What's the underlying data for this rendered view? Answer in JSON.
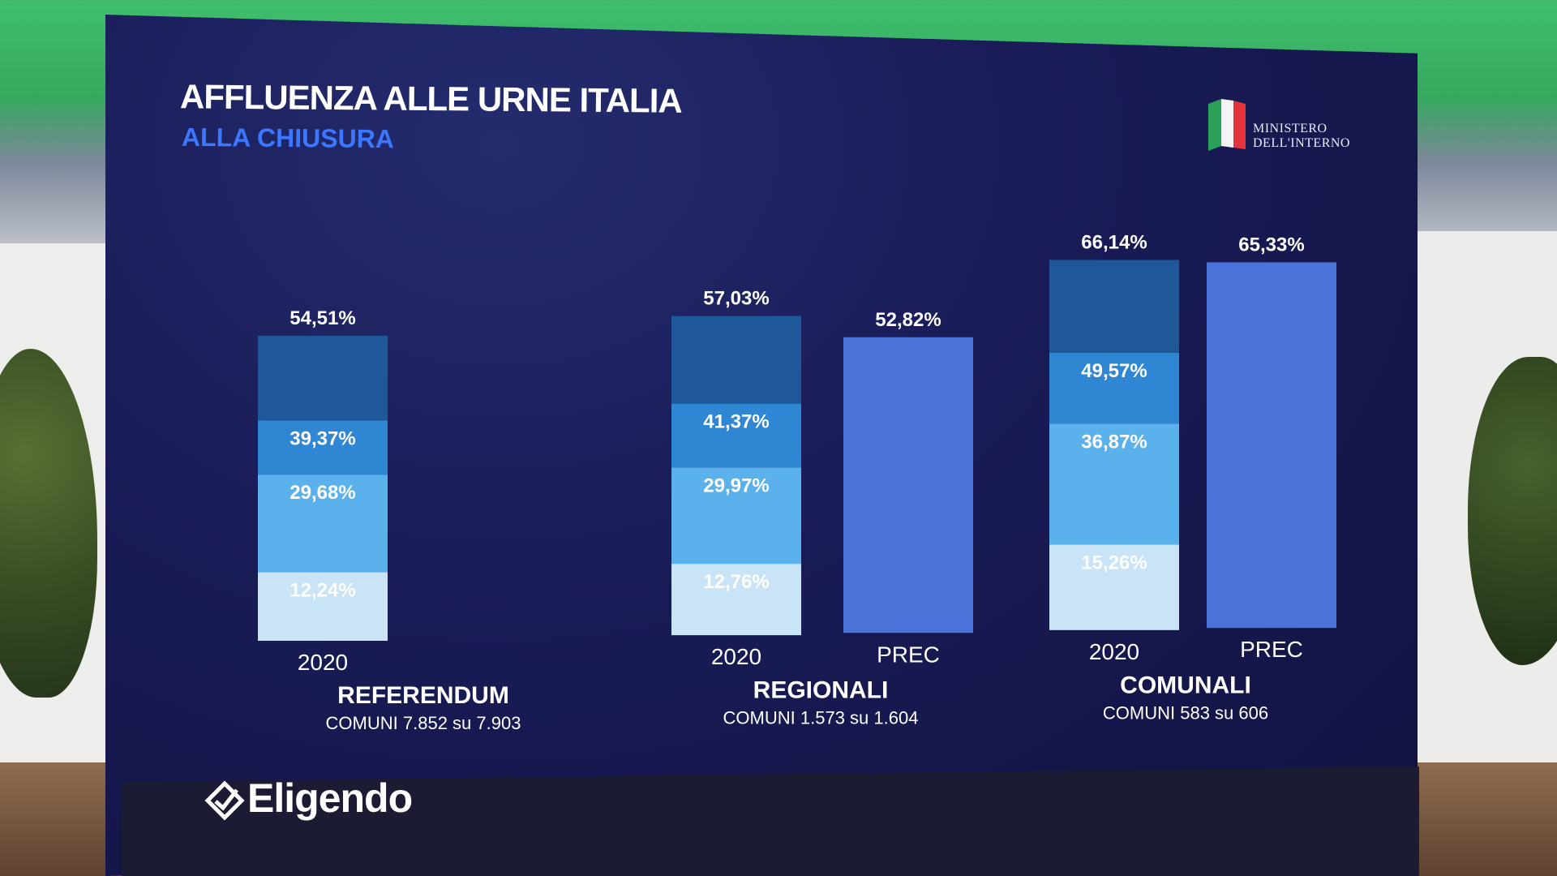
{
  "header": {
    "title": "AFFLUENZA ALLE URNE ITALIA",
    "subtitle": "ALLA CHIUSURA"
  },
  "ministry": {
    "line1": "MINISTERO",
    "line2": "DELL'INTERNO"
  },
  "brand": {
    "name": "Eligendo"
  },
  "colors": {
    "level_1": "#c9e4f6",
    "level_2": "#5bb1ec",
    "level_3": "#2f86d3",
    "level_4": "#1f5898",
    "prec": "#4a73d9",
    "text": "#ffffff"
  },
  "chart_data": {
    "type": "bar",
    "title": "AFFLUENZA ALLE URNE ITALIA",
    "subtitle": "ALLA CHIUSURA",
    "groups": [
      {
        "name": "REFERENDUM",
        "detail": "COMUNI 7.852 su 7.903",
        "bars": [
          {
            "label": "2020",
            "kind": "stacked",
            "levels": [
              12.24,
              29.68,
              39.37,
              54.51
            ],
            "level_labels": [
              "12,24%",
              "29,68%",
              "39,37%",
              "54,51%"
            ]
          }
        ]
      },
      {
        "name": "REGIONALI",
        "detail": "COMUNI 1.573 su 1.604",
        "bars": [
          {
            "label": "2020",
            "kind": "stacked",
            "levels": [
              12.76,
              29.97,
              41.37,
              57.03
            ],
            "level_labels": [
              "12,76%",
              "29,97%",
              "41,37%",
              "57,03%"
            ]
          },
          {
            "label": "PREC",
            "kind": "single",
            "levels": [
              52.82
            ],
            "level_labels": [
              "52,82%"
            ]
          }
        ]
      },
      {
        "name": "COMUNALI",
        "detail": "COMUNI 583 su 606",
        "bars": [
          {
            "label": "2020",
            "kind": "stacked",
            "levels": [
              15.26,
              36.87,
              49.57,
              66.14
            ],
            "level_labels": [
              "15,26%",
              "36,87%",
              "49,57%",
              "66,14%"
            ]
          },
          {
            "label": "PREC",
            "kind": "single",
            "levels": [
              65.33
            ],
            "level_labels": [
              "65,33%"
            ]
          }
        ]
      }
    ]
  }
}
